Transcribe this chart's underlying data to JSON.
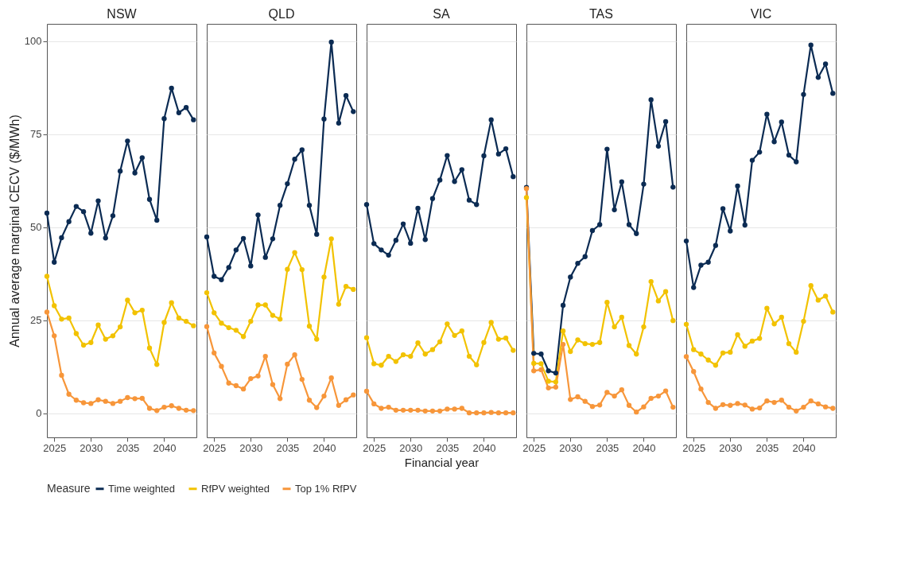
{
  "chart_data": [
    {
      "type": "line",
      "title": "NSW",
      "ylabel": "Annual average marginal CECV ($/MWh)",
      "legend_title": "Measure",
      "legend": "bottom",
      "grid": "y",
      "marker": "circle",
      "xlim": [
        2024,
        2044.4
      ],
      "xticks": [
        2025,
        2030,
        2035,
        2040
      ],
      "ylim": [
        -6.5,
        104.7
      ],
      "yticks": [
        0,
        25,
        50,
        75,
        100
      ],
      "x": [
        2024,
        2025,
        2026,
        2027,
        2028,
        2029,
        2030,
        2031,
        2032,
        2033,
        2034,
        2035,
        2036,
        2037,
        2038,
        2039,
        2040,
        2041,
        2042,
        2043,
        2044
      ],
      "series": [
        {
          "name": "Time weighted",
          "color": "#0b2b53",
          "values": [
            53.8,
            40.6,
            47.2,
            51.5,
            55.6,
            54.2,
            48.4,
            57.1,
            47.1,
            53.1,
            65.1,
            73.2,
            64.6,
            68.7,
            57.5,
            51.9,
            79.2,
            87.4,
            80.8,
            82.2,
            78.9
          ]
        },
        {
          "name": "RfPV weighted",
          "color": "#f2c200",
          "values": [
            36.8,
            28.9,
            25.3,
            25.6,
            21.4,
            18.3,
            19.0,
            23.7,
            19.9,
            20.8,
            23.2,
            30.4,
            27.0,
            27.7,
            17.5,
            13.1,
            24.4,
            29.7,
            25.6,
            24.7,
            23.5
          ]
        },
        {
          "name": "Top 1% RfPV",
          "color": "#f7963a",
          "values": [
            27.2,
            20.8,
            10.2,
            5.1,
            3.5,
            2.8,
            2.6,
            3.6,
            3.2,
            2.6,
            3.2,
            4.2,
            3.9,
            4.0,
            1.3,
            0.7,
            1.6,
            2.0,
            1.3,
            0.8,
            0.7
          ]
        }
      ]
    },
    {
      "type": "line",
      "title": "QLD",
      "grid": "y",
      "marker": "circle",
      "tick_labels": "x",
      "xlim": [
        2024,
        2044.4
      ],
      "xticks": [
        2025,
        2030,
        2035,
        2040
      ],
      "ylim": [
        -6.5,
        104.7
      ],
      "yticks": [
        0,
        25,
        50,
        75,
        100
      ],
      "x": [
        2024,
        2025,
        2026,
        2027,
        2028,
        2029,
        2030,
        2031,
        2032,
        2033,
        2034,
        2035,
        2036,
        2037,
        2038,
        2039,
        2040,
        2041,
        2042,
        2043,
        2044
      ],
      "series": [
        {
          "name": "Time weighted",
          "color": "#0b2b53",
          "values": [
            47.4,
            36.8,
            35.9,
            39.2,
            43.9,
            47.0,
            39.6,
            53.3,
            41.9,
            46.9,
            55.9,
            61.7,
            68.3,
            70.8,
            55.9,
            48.1,
            79.1,
            99.8,
            78.0,
            85.4,
            81.1
          ]
        },
        {
          "name": "RfPV weighted",
          "color": "#f2c200",
          "values": [
            32.4,
            27.0,
            24.2,
            23.0,
            22.3,
            20.6,
            24.7,
            29.1,
            29.1,
            26.3,
            25.3,
            38.7,
            43.2,
            38.6,
            23.4,
            19.9,
            36.6,
            46.9,
            29.3,
            34.1,
            33.3
          ]
        },
        {
          "name": "Top 1% RfPV",
          "color": "#f7963a",
          "values": [
            23.3,
            16.2,
            12.6,
            8.1,
            7.4,
            6.5,
            9.3,
            10.0,
            15.3,
            7.7,
            3.9,
            13.2,
            15.7,
            9.1,
            3.5,
            1.5,
            4.6,
            9.5,
            2.1,
            3.6,
            4.9
          ]
        }
      ]
    },
    {
      "type": "line",
      "title": "SA",
      "xlabel": "Financial year",
      "grid": "y",
      "marker": "circle",
      "tick_labels": "x",
      "xlim": [
        2024,
        2044.4
      ],
      "xticks": [
        2025,
        2030,
        2035,
        2040
      ],
      "ylim": [
        -6.5,
        104.7
      ],
      "yticks": [
        0,
        25,
        50,
        75,
        100
      ],
      "x": [
        2024,
        2025,
        2026,
        2027,
        2028,
        2029,
        2030,
        2031,
        2032,
        2033,
        2034,
        2035,
        2036,
        2037,
        2038,
        2039,
        2040,
        2041,
        2042,
        2043,
        2044
      ],
      "series": [
        {
          "name": "Time weighted",
          "color": "#0b2b53",
          "values": [
            56.1,
            45.6,
            43.9,
            42.5,
            46.5,
            50.9,
            45.7,
            55.1,
            46.7,
            57.7,
            62.7,
            69.3,
            62.3,
            65.5,
            57.3,
            56.1,
            69.2,
            78.9,
            69.7,
            71.1,
            63.6
          ]
        },
        {
          "name": "RfPV weighted",
          "color": "#f2c200",
          "values": [
            20.3,
            13.3,
            12.9,
            15.3,
            13.9,
            15.7,
            15.3,
            18.9,
            15.9,
            17.1,
            19.2,
            24.0,
            20.9,
            22.1,
            15.3,
            13.0,
            19.0,
            24.4,
            19.9,
            20.2,
            16.9
          ]
        },
        {
          "name": "Top 1% RfPV",
          "color": "#f7963a",
          "values": [
            5.9,
            2.5,
            1.3,
            1.6,
            0.8,
            0.8,
            0.8,
            0.8,
            0.6,
            0.6,
            0.6,
            1.1,
            1.1,
            1.3,
            0.1,
            0.1,
            0.1,
            0.2,
            0.1,
            0.1,
            0.1
          ]
        }
      ]
    },
    {
      "type": "line",
      "title": "TAS",
      "grid": "y",
      "marker": "circle",
      "tick_labels": "x",
      "xlim": [
        2024,
        2044.4
      ],
      "xticks": [
        2025,
        2030,
        2035,
        2040
      ],
      "ylim": [
        -6.5,
        104.7
      ],
      "yticks": [
        0,
        25,
        50,
        75,
        100
      ],
      "x": [
        2024,
        2025,
        2026,
        2027,
        2028,
        2029,
        2030,
        2031,
        2032,
        2033,
        2034,
        2035,
        2036,
        2037,
        2038,
        2039,
        2040,
        2041,
        2042,
        2043,
        2044
      ],
      "series": [
        {
          "name": "Time weighted",
          "color": "#0b2b53",
          "values": [
            60.7,
            16.1,
            15.9,
            11.4,
            10.8,
            29.0,
            36.6,
            40.3,
            42.1,
            49.1,
            50.7,
            71.0,
            54.7,
            62.2,
            50.7,
            48.3,
            61.6,
            84.3,
            71.8,
            78.4,
            60.8
          ]
        },
        {
          "name": "RfPV weighted",
          "color": "#f2c200",
          "values": [
            58.0,
            13.4,
            13.3,
            8.6,
            8.4,
            22.1,
            16.6,
            19.7,
            18.7,
            18.5,
            19.0,
            29.8,
            23.2,
            25.8,
            18.2,
            15.9,
            23.2,
            35.4,
            30.2,
            32.7,
            24.9
          ]
        },
        {
          "name": "Top 1% RfPV",
          "color": "#f7963a",
          "values": [
            60.4,
            11.4,
            11.7,
            6.8,
            7.0,
            18.5,
            3.7,
            4.4,
            3.2,
            1.8,
            2.2,
            5.6,
            4.6,
            6.3,
            2.1,
            0.3,
            1.7,
            4.0,
            4.6,
            6.0,
            1.6
          ]
        }
      ]
    },
    {
      "type": "line",
      "title": "VIC",
      "grid": "y",
      "marker": "circle",
      "tick_labels": "x",
      "xlim": [
        2024,
        2044.4
      ],
      "xticks": [
        2025,
        2030,
        2035,
        2040
      ],
      "ylim": [
        -6.5,
        104.7
      ],
      "yticks": [
        0,
        25,
        50,
        75,
        100
      ],
      "x": [
        2024,
        2025,
        2026,
        2027,
        2028,
        2029,
        2030,
        2031,
        2032,
        2033,
        2034,
        2035,
        2036,
        2037,
        2038,
        2039,
        2040,
        2041,
        2042,
        2043,
        2044
      ],
      "series": [
        {
          "name": "Time weighted",
          "color": "#0b2b53",
          "values": [
            46.3,
            33.8,
            39.8,
            40.6,
            45.1,
            55.0,
            49.0,
            61.1,
            50.6,
            68.0,
            70.2,
            80.4,
            73.0,
            78.3,
            69.4,
            67.6,
            85.7,
            99.0,
            90.3,
            93.9,
            86.0
          ]
        },
        {
          "name": "RfPV weighted",
          "color": "#f2c200",
          "values": [
            23.9,
            17.1,
            15.9,
            14.3,
            12.9,
            16.2,
            16.4,
            21.1,
            18.0,
            19.4,
            20.1,
            28.2,
            24.0,
            25.8,
            18.7,
            16.4,
            24.7,
            34.3,
            30.4,
            31.5,
            27.2
          ]
        },
        {
          "name": "Top 1% RfPV",
          "color": "#f7963a",
          "values": [
            15.2,
            11.2,
            6.5,
            2.9,
            1.3,
            2.3,
            2.1,
            2.6,
            2.2,
            1.1,
            1.4,
            3.3,
            2.9,
            3.5,
            1.6,
            0.6,
            1.6,
            3.3,
            2.5,
            1.7,
            1.3
          ]
        }
      ]
    }
  ]
}
